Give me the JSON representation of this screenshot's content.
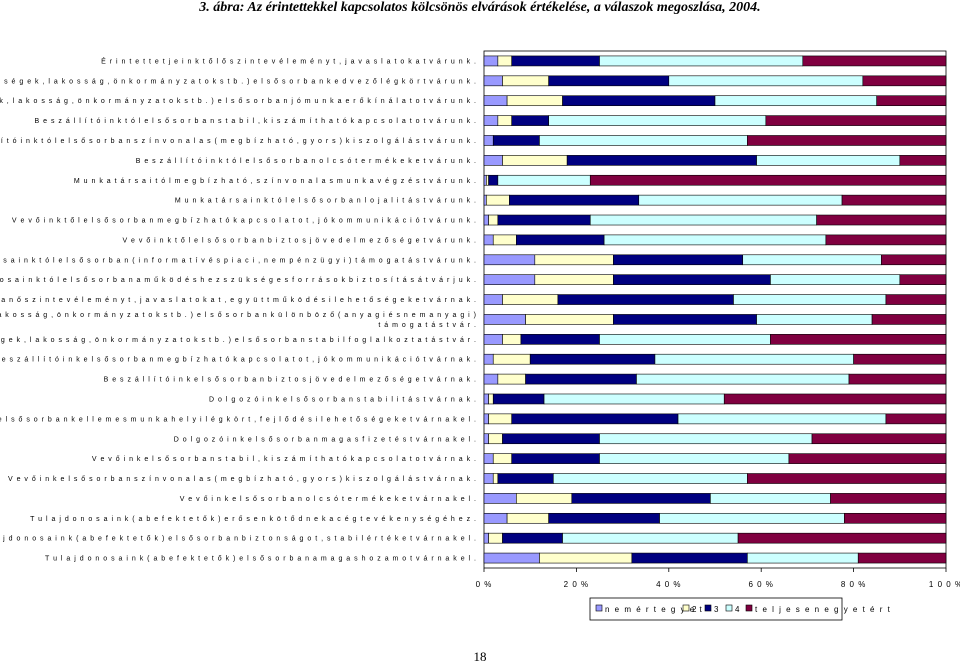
{
  "title": "3. ábra: Az érintettekkel kapcsolatos kölcsönös elvárások értékelése, a válaszok megoszlása, 2004.",
  "page_number": "18",
  "colors": {
    "c1": "#9999ff",
    "c2": "#ffffcc",
    "c3": "#000080",
    "c4": "#ccffff",
    "c5": "#800040",
    "stroke": "#000000"
  },
  "chart_data": {
    "type": "bar",
    "orientation": "horizontal",
    "stacked": "percent",
    "title": "3. ábra: Az érintettekkel kapcsolatos kölcsönös elvárások értékelése, a válaszok megoszlása, 2004.",
    "xlim": [
      0,
      100
    ],
    "x_ticks": [
      "0 %",
      "2 0 %",
      "4 0 %",
      "6 0 %",
      "8 0 %",
      "1 0 0 %"
    ],
    "legend_position": "bottom-right",
    "legend": [
      "n e m   é r t   e g y   e t",
      "2",
      "3",
      "4",
      "t e l j e s e n   e g y e t é r t"
    ],
    "categories": [
      [
        "É r i n t e t t e t j e i n k t ő l  ő s z i n t e  v é l e m é n y t ,  j a v a s l a t o k a t  v á r u n k ."
      ],
      [
        "V á l l a l a t u n k  k ö r n y e z e t é t ő l  ( h e l y i  k ö z ö s s é g e k ,  l a k o s s á g ,  ö n k o r m á n y z a t o k  s t b . )  e l s ő s o r b a n  k e d v e z ő  l é g k ö r t  v á r u n k ."
      ],
      [
        "V á l l a l a t u n k  k ö r n y e z e t é t ő l  ( h e l y i  k ö z ö s s é g e k ,  l a k o s s á g ,  ö n k o r m á n y z a t o k  s t b . )  e l s ő s o r b a n  j ó  m u n k a e r ő k í n á l a t o t  v á r u n k ."
      ],
      [
        "B e s z á l l í t ó i n k t ó l  e l s ő s o r b a n  s t a b i l ,  k i s z á m í t h a t ó  k a p c s o l a t o t  v á r u n k ."
      ],
      [
        "B e s z á l l í t ó i n k t ó l  e l s ő s o r b a n  s z í n v o n a l a s  ( m e g b í z h a t ó ,  g y o r s )  k i s z o l g á l á s t  v á r u n k ."
      ],
      [
        "B e s z á l l í t ó i n k t ó l  e l s ő s o r b a n  o l c s ó  t e r m é k e k e t  v á r u n k ."
      ],
      [
        "M u n k a t á r s a i t ó l  m e g b í z h a t ó ,  s z í n v o n a l a s  m u n k a v é g z é s t  v á r u n k ."
      ],
      [
        "M u n k a t á r s a i n k t ó l  e l s ő s o r b a n  l o j a l i t á s t  v á r u n k ."
      ],
      [
        "V e v ő i n k t ő l  e l s ő s o r b a n  m e g b í z h a t ó  k a p c s o l a t o t ,  j ó  k o m m u n i k á c i ó t  v á r u n k ."
      ],
      [
        "V e v ő i n k t ő l  e l s ő s o r b a n  b i z t o s  j ö v e d e l m e z ő s é g e t  v á r u n k ."
      ],
      [
        "T u l a j d o n o s a i n k t ó l  e l s ő s o r b a n  ( i n f o r m a t í v  é s  p i a c i ,  n e m  p é n z ü g y i )  t á m o g a t á s t  v á r u n k ."
      ],
      [
        "T u l a j d o n o s a i n k t ó l  e l s ő s o r b a n  a  m ű k ö d é s h e z  s z ü k s é g e s  f o r r á s o k  b i z t o s í t á s á t  v á r j u k ."
      ],
      [
        "V á l l a l a t u n k  é r i n t e t t e j e i  e l s ő s o r b a n  ő s z i n t e  v é l e m é n y t ,  j a v a s l a t o k a t ,  e g y ü t t m ű k ö d é s i  l e h e t ő s é g e k e t   v á r n a k ."
      ],
      [
        "V á l l a l a t u n k  k ö r n y e z e t e  ( h e l y i  k ö z ö s s é g e k ,  l a k o s s á g ,  ö n k o r m á n y z a t o k  s t b . )  e l s ő s o r b a n  k ü l ö n b ö z ő  ( a n y a g i  é s  n e m   a n y a g i )",
        "t á m o g a t á s t  v á r ."
      ],
      [
        "V á l l a l a t u n k  k ö r n y e z e t e  ( h e l y i  k ö z ö s s é g e k ,  l a k o s s á g ,  ö n k o r m á n y z a t o k  s t b . )  e l s ő s o r b a n  s t a b i l  f o g l a l k o z t a t á s t  v á r ."
      ],
      [
        "B e s z á l l í t ó i n k  e l s ő s o r b a n  m e g b í z h a t ó  k a p c s o l a t o t ,  j ó  k o m m u n i k á c i ó t  v á r n a k ."
      ],
      [
        "B e s z á l l í t ó i n k  e l s ő s o r b a n  b i z t o s  j ö v e d e l m e z ő s é g e t  v á r n a k ."
      ],
      [
        "D o l g o z ó i n k  e l s ő s o r b a n  s t a b i l i t á s t  v á r n a k ."
      ],
      [
        "D o l g o z ó i n k  e l s ő s o r b a n  k e l l e m e s  m u n k a h e l y i  l é g k ö r t ,  f e j l ő d é s i  l e h e t ő s é g e k e t  v á r n a k  e l ."
      ],
      [
        "D o l g o z ó i n k  e l s ő s o r b a n  m a g a s  f i z e t é s t  v á r n a k  e l ."
      ],
      [
        "V e v ő i n k  e l s ő s o r b a n  s t a b i l ,  k i s z á m í t h a t ó  k a p c s o l a t o t  v á r n a k ."
      ],
      [
        "V e v ő i n k  e l s ő s o r b a n  s z í n v o n a l a s  ( m e g b í z h a t ó ,  g y o r s )  k i s z o l g á l á s t  v á r n a k ."
      ],
      [
        "V e v ő i n k  e l s ő s o r b a n  o l c s ó  t e r m é k e k e t  v á r n a k  e l ."
      ],
      [
        "T u l a j d o n o s a i n k  ( a  b e f e k t e t ő k )  e r ő s e n  k ö t ő d n e k  a  c é g  t e v é k e n y s é g é h e z ."
      ],
      [
        "T u l a j d o n o s a i n k  ( a  b e f e k t e t ő k )  e l s ő s o r b a n  b i z t o n s á g o t ,  s t a b i l  é r t é k e t  v á r n a k  e l ."
      ],
      [
        "T u l a j d o n o s a i n k  ( a  b e f e k t e t ő k )  e l s ő s o r b a n  a  m a g a s  h o z a m  o t  v á r n a k  e l ."
      ]
    ],
    "series": [
      {
        "name": "n e m   é r t   e g y   e t",
        "values": [
          3,
          4,
          5,
          3,
          2,
          4,
          0.5,
          0.5,
          1,
          2,
          11,
          11,
          4,
          9,
          4,
          2,
          3,
          1,
          1,
          1,
          2,
          2,
          7,
          5,
          1,
          12
        ]
      },
      {
        "name": "2",
        "values": [
          3,
          10,
          12,
          3,
          0,
          14,
          0.5,
          5,
          2,
          5,
          17,
          17,
          12,
          19,
          4,
          8,
          6,
          1,
          5,
          3,
          4,
          1,
          12,
          9,
          3,
          20
        ]
      },
      {
        "name": "3",
        "values": [
          19,
          26,
          33,
          8,
          10,
          41,
          2,
          28,
          20,
          19,
          28,
          34,
          38,
          31,
          17,
          27,
          24,
          11,
          36,
          21,
          19,
          12,
          30,
          24,
          13,
          25
        ]
      },
      {
        "name": "4",
        "values": [
          44,
          42,
          35,
          47,
          45,
          31,
          20,
          44,
          49,
          48,
          30,
          28,
          33,
          25,
          37,
          43,
          46,
          39,
          45,
          46,
          41,
          42,
          26,
          40,
          38,
          24
        ]
      },
      {
        "name": "t e l j e s e n   e g y e t é r t",
        "values": [
          31,
          18,
          15,
          39,
          43,
          10,
          77,
          22.5,
          28,
          26,
          14,
          10,
          13,
          16,
          38,
          20,
          21,
          48,
          13,
          29,
          34,
          43,
          25,
          22,
          45,
          19
        ]
      }
    ]
  }
}
